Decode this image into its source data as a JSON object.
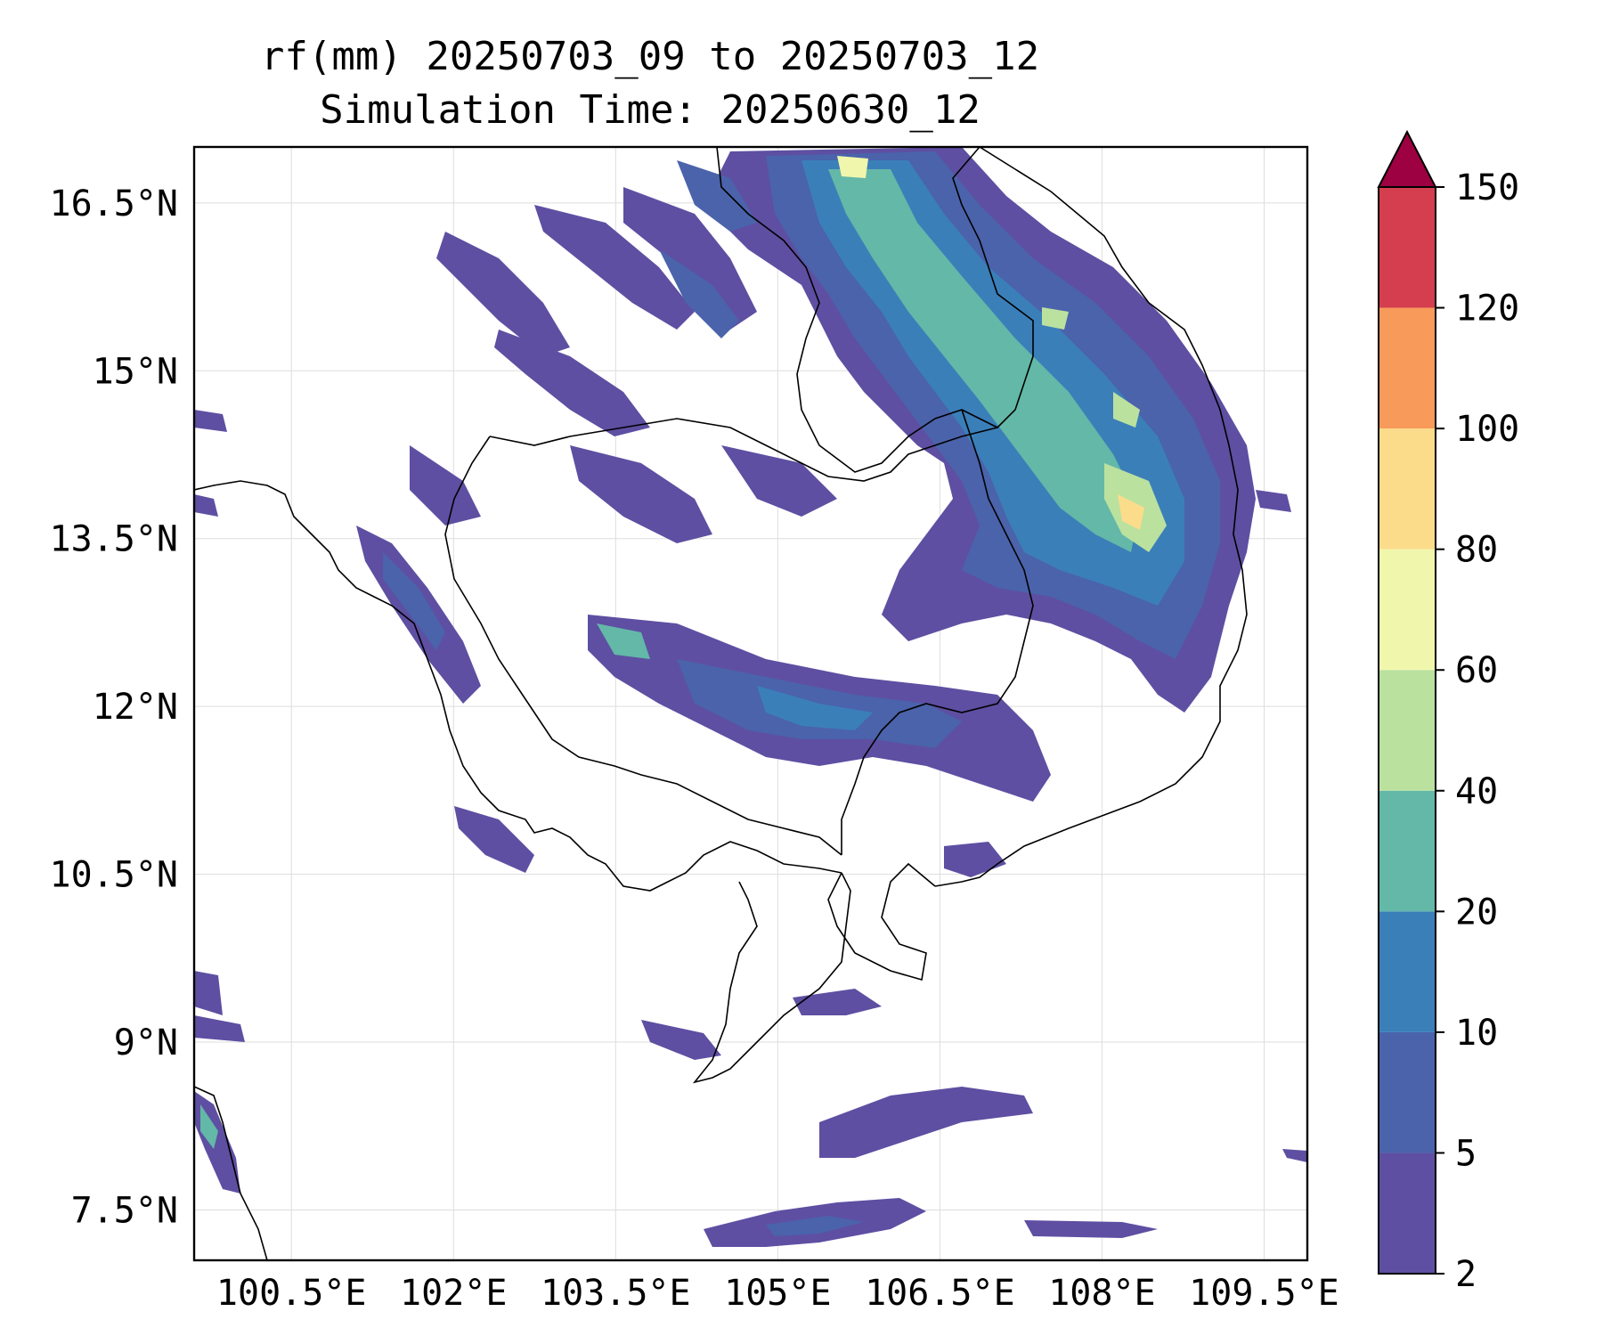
{
  "title_line1": "rf(mm) 20250703_09 to 20250703_12",
  "title_line2": "Simulation Time: 20250630_12",
  "map": {
    "lon_range": [
      99.6,
      109.9
    ],
    "lat_range": [
      7.05,
      17.0
    ],
    "lon_ticks": [
      "100.5°E",
      "102°E",
      "103.5°E",
      "105°E",
      "106.5°E",
      "108°E",
      "109.5°E"
    ],
    "lat_ticks": [
      "16.5°N",
      "15°N",
      "13.5°N",
      "12°N",
      "10.5°N",
      "9°N",
      "7.5°N"
    ],
    "gridlines": true
  },
  "colorbar": {
    "levels": [
      "2",
      "5",
      "10",
      "20",
      "40",
      "60",
      "80",
      "100",
      "120",
      "150"
    ],
    "colors": [
      "#5e4fa2",
      "#4a63ab",
      "#3b7fb9",
      "#63b8a8",
      "#bbe19f",
      "#f0f7ac",
      "#fbdc8b",
      "#f89a5a",
      "#d53e4f"
    ],
    "extend_color": "#9e0142"
  },
  "icons": {
    "colorbar_extend": "triangle-up-icon"
  }
}
